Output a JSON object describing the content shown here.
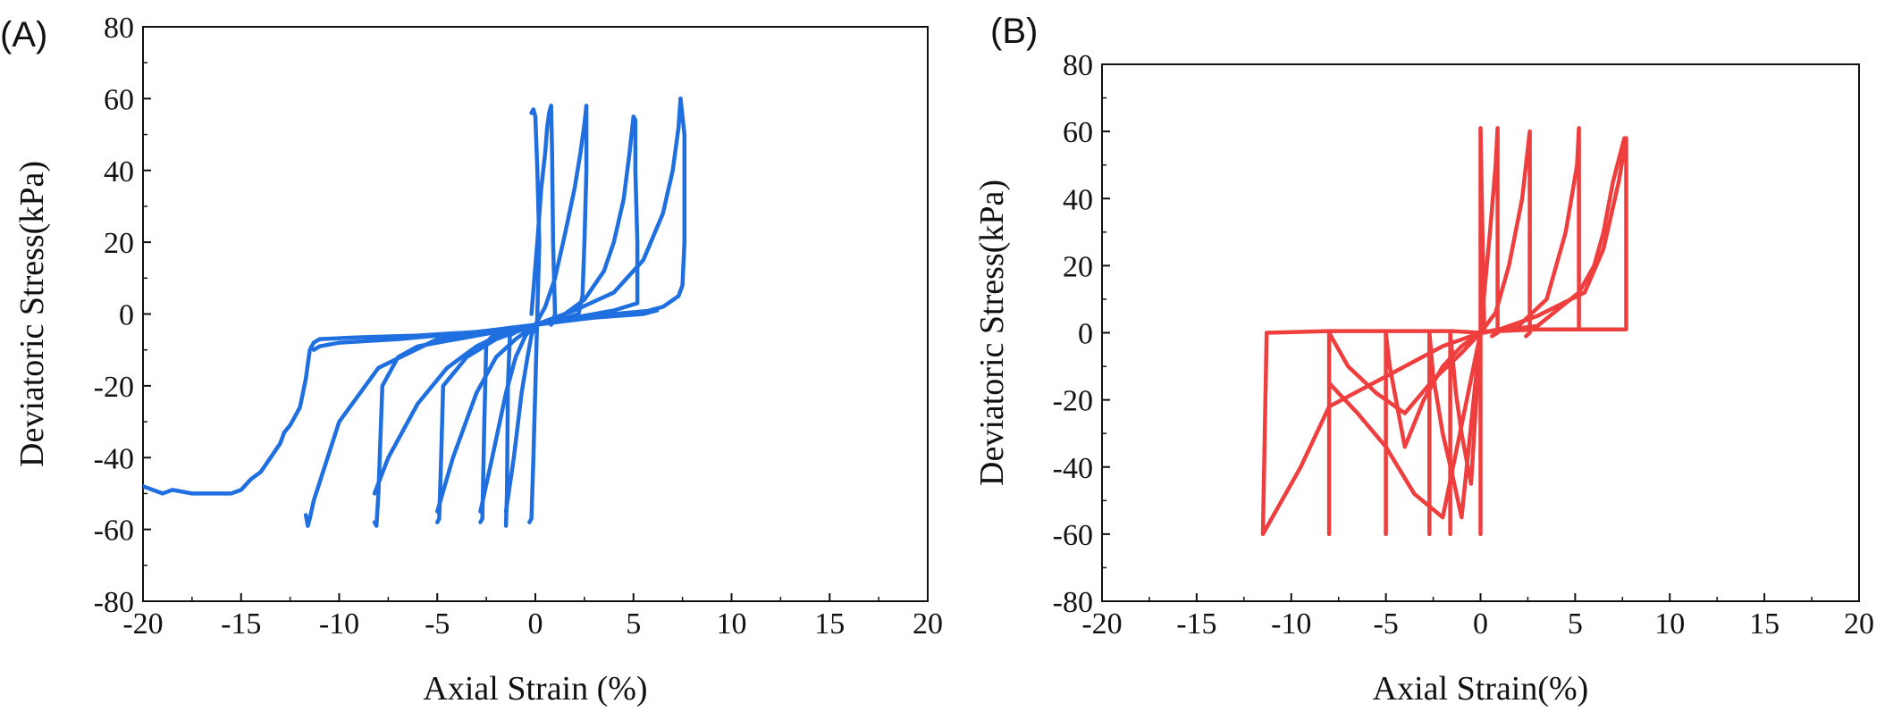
{
  "chart_data": [
    {
      "type": "line",
      "panel_label": "(A)",
      "xlabel": "Axial Strain (%)",
      "ylabel": "Deviatoric Stress(kPa)",
      "xlim": [
        -20,
        20
      ],
      "ylim": [
        -80,
        80
      ],
      "xticks": [
        -20,
        -15,
        -10,
        -5,
        0,
        5,
        10,
        15,
        20
      ],
      "yticks": [
        -80,
        -60,
        -40,
        -20,
        0,
        20,
        40,
        60,
        80
      ],
      "color": "#1f6fe0",
      "grid": false,
      "series": [
        {
          "x": [
            -20,
            -19.5,
            -19,
            -18.5,
            -17.5,
            -16.5,
            -15.5,
            -15,
            -14.5,
            -14,
            -13.5,
            -13,
            -12.8,
            -12.5,
            -12,
            -11.7,
            -11.5,
            -11.3,
            -11,
            -9,
            -6,
            -3,
            0,
            3,
            5.5,
            6.2
          ],
          "y": [
            -48,
            -49,
            -50,
            -49,
            -50,
            -50,
            -50,
            -49,
            -46,
            -44,
            -40,
            -36,
            -33,
            -31,
            -26,
            -18,
            -10,
            -8,
            -7,
            -6.5,
            -6,
            -5,
            -3,
            -1,
            0,
            1
          ]
        },
        {
          "x": [
            -11.7,
            -11.6,
            -11.5,
            -11.3,
            -10,
            -8,
            -5,
            -2,
            0
          ],
          "y": [
            -56,
            -59,
            -57,
            -52,
            -30,
            -15,
            -7,
            -5,
            -3
          ]
        },
        {
          "x": [
            -11.3,
            -11,
            -10,
            -8.5,
            -7,
            -5,
            -3,
            -1,
            0
          ],
          "y": [
            -10,
            -9,
            -8,
            -7.5,
            -7,
            -6,
            -5,
            -4,
            -3
          ]
        },
        {
          "x": [
            -8.2,
            -8.1,
            -8,
            -7.8,
            -7,
            -6,
            -4,
            -2,
            0,
            2,
            4,
            6
          ],
          "y": [
            -58,
            -59,
            -50,
            -20,
            -12,
            -9,
            -7,
            -5,
            -3,
            -1,
            0,
            1
          ]
        },
        {
          "x": [
            -8.2,
            -7.5,
            -6,
            -4.5,
            -3,
            -1.5,
            0
          ],
          "y": [
            -50,
            -40,
            -25,
            -15,
            -9,
            -5,
            -3
          ]
        },
        {
          "x": [
            -5,
            -4.9,
            -4.8,
            -4.7,
            -3.5,
            -2,
            -1,
            0
          ],
          "y": [
            -58,
            -57,
            -40,
            -20,
            -12,
            -7,
            -5,
            -3
          ]
        },
        {
          "x": [
            -5,
            -4.2,
            -3,
            -2,
            -1,
            0
          ],
          "y": [
            -55,
            -40,
            -22,
            -12,
            -7,
            -3
          ]
        },
        {
          "x": [
            -2.8,
            -2.7,
            -2.6,
            -2.5,
            -2,
            -1.5,
            0
          ],
          "y": [
            -58,
            -57,
            -30,
            -8,
            -5,
            -4,
            -3
          ]
        },
        {
          "x": [
            -2.8,
            -2.2,
            -1.5,
            -1,
            -0.5,
            0
          ],
          "y": [
            -55,
            -40,
            -22,
            -12,
            -6,
            -3
          ]
        },
        {
          "x": [
            -1.5,
            -1.45,
            -1.4,
            -1.3,
            -1,
            -0.5,
            0
          ],
          "y": [
            -59,
            -50,
            -20,
            -6,
            -5,
            -4,
            -3
          ]
        },
        {
          "x": [
            -1.5,
            -1.1,
            -0.7,
            -0.4,
            -0.2,
            0
          ],
          "y": [
            -55,
            -40,
            -22,
            -12,
            -6,
            -3
          ]
        },
        {
          "x": [
            -0.3,
            -0.2,
            -0.1,
            0,
            0.1,
            0.2,
            0.1,
            0,
            -0.1,
            -0.2
          ],
          "y": [
            -58,
            -57,
            -40,
            -20,
            0,
            20,
            40,
            55,
            57,
            56
          ]
        },
        {
          "x": [
            -0.2,
            0.1,
            0.3,
            0.5,
            0.6,
            0.7,
            0.8
          ],
          "y": [
            0,
            20,
            35,
            45,
            52,
            56,
            58
          ]
        },
        {
          "x": [
            0.8,
            0.85,
            0.9,
            1,
            0.9,
            0.8
          ],
          "y": [
            58,
            45,
            20,
            0,
            -2,
            -3
          ]
        },
        {
          "x": [
            0,
            0.5,
            1,
            1.5,
            2,
            2.3,
            2.5,
            2.6
          ],
          "y": [
            -3,
            2,
            10,
            22,
            35,
            45,
            53,
            58
          ]
        },
        {
          "x": [
            2.6,
            2.6,
            2.5,
            2.4,
            2.2,
            1,
            0
          ],
          "y": [
            58,
            40,
            20,
            5,
            0,
            -2,
            -3
          ]
        },
        {
          "x": [
            0,
            1.5,
            2.5,
            3.5,
            4,
            4.5,
            4.8,
            5
          ],
          "y": [
            -3,
            0,
            4,
            12,
            20,
            32,
            45,
            55
          ]
        },
        {
          "x": [
            5,
            5.1,
            5.1,
            5.2,
            5.2,
            4,
            2,
            0
          ],
          "y": [
            55,
            54,
            40,
            20,
            3,
            1,
            -1,
            -3
          ]
        },
        {
          "x": [
            0,
            2,
            4,
            5.5,
            6.5,
            7,
            7.3,
            7.4
          ],
          "y": [
            -3,
            1,
            6,
            15,
            28,
            40,
            52,
            60
          ]
        },
        {
          "x": [
            7.4,
            7.6,
            7.6,
            7.6,
            7.5,
            7.3,
            6.5,
            5.8
          ],
          "y": [
            60,
            50,
            38,
            20,
            8,
            5,
            2,
            1
          ]
        }
      ]
    },
    {
      "type": "line",
      "panel_label": "(B)",
      "xlabel": "Axial Strain(%)",
      "ylabel": "Deviatoric Stress(kPa)",
      "xlim": [
        -20,
        20
      ],
      "ylim": [
        -80,
        80
      ],
      "xticks": [
        -20,
        -15,
        -10,
        -5,
        0,
        5,
        10,
        15,
        20
      ],
      "yticks": [
        -80,
        -60,
        -40,
        -20,
        0,
        20,
        40,
        60,
        80
      ],
      "color": "#ee3e3e",
      "grid": false,
      "series": [
        {
          "x": [
            0,
            0,
            0.2,
            0.5,
            1,
            3,
            5.1,
            7.7,
            7.7,
            7.3,
            6.5,
            5.5,
            3,
            1,
            0,
            -2,
            -4,
            -6,
            -8,
            -9.5,
            -11.5,
            -11.3,
            -8,
            -5,
            -2.7,
            -1.5,
            0
          ],
          "y": [
            -60,
            61,
            0,
            0.5,
            0.5,
            1,
            1,
            1,
            58,
            45,
            25,
            12,
            5,
            1,
            0,
            -4,
            -10,
            -16,
            -22,
            -40,
            -60,
            0,
            0.5,
            0.5,
            0.5,
            0.5,
            0
          ]
        },
        {
          "x": [
            -8,
            -8,
            -8,
            -7,
            -5.5,
            -4,
            -2.5,
            -1,
            0
          ],
          "y": [
            -60,
            -40,
            0,
            -10,
            -18,
            -24,
            -14,
            -6,
            0
          ]
        },
        {
          "x": [
            -8,
            -6.5,
            -5,
            -3.5,
            -2,
            0
          ],
          "y": [
            -15,
            -24,
            -34,
            -48,
            -55,
            0
          ]
        },
        {
          "x": [
            -5,
            -5,
            -4.8,
            -4,
            -3,
            -2,
            -1,
            0
          ],
          "y": [
            -60,
            0,
            -10,
            -34,
            -20,
            -10,
            -4,
            0
          ]
        },
        {
          "x": [
            -2.7,
            -2.7,
            -2.5,
            -2,
            -1.5,
            -1,
            0
          ],
          "y": [
            -60,
            0,
            -13,
            -30,
            -42,
            -55,
            0
          ]
        },
        {
          "x": [
            -1.6,
            -1.6,
            -1.3,
            -1,
            -0.5,
            0
          ],
          "y": [
            -60,
            0,
            -18,
            -30,
            -45,
            0
          ]
        },
        {
          "x": [
            0,
            0.2,
            0.5,
            0.8,
            0.9,
            0.9,
            0.6
          ],
          "y": [
            0,
            12,
            30,
            50,
            61,
            0,
            -1
          ]
        },
        {
          "x": [
            0,
            0.8,
            1.5,
            2.2,
            2.6,
            2.6,
            2.4
          ],
          "y": [
            0,
            6,
            20,
            40,
            60,
            0,
            -1
          ]
        },
        {
          "x": [
            0,
            2,
            3.5,
            4.5,
            5.1,
            5.2,
            5.2
          ],
          "y": [
            0,
            2,
            10,
            30,
            50,
            61,
            1
          ]
        },
        {
          "x": [
            0,
            3,
            5.2,
            6,
            6.5,
            7,
            7.6
          ],
          "y": [
            0,
            2,
            12,
            20,
            30,
            45,
            58
          ]
        }
      ]
    }
  ]
}
